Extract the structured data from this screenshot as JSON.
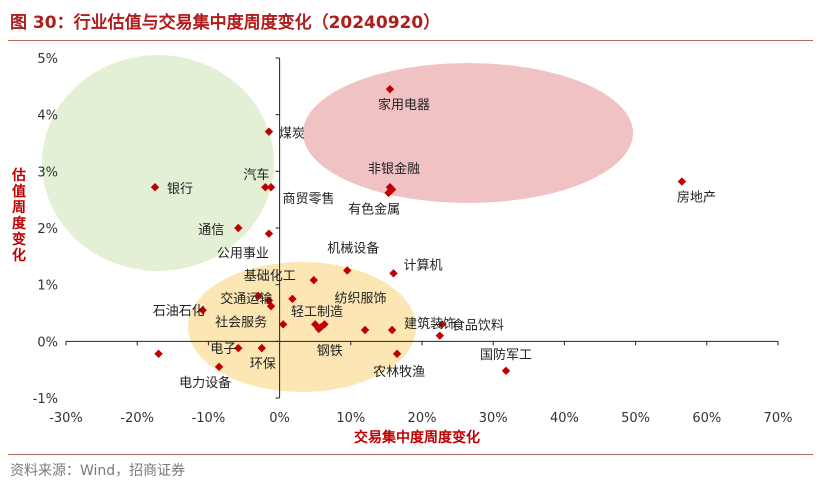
{
  "figure": {
    "title": "图 30：行业估值与交易集中度周度变化（20240920）",
    "source": "资料来源：Wind，招商证券"
  },
  "colors": {
    "title": "#b01c1c",
    "marker": "#c00000",
    "ellipse_green": "#e3f0d5",
    "ellipse_red": "#f0c2c4",
    "ellipse_yellow": "#fbe6b4",
    "axis": "#222222"
  },
  "chart_data": {
    "type": "scatter",
    "xlabel": "交易集中度周度变化",
    "ylabel": "估值周度变化",
    "xlim": [
      -30,
      70
    ],
    "ylim": [
      -1,
      5
    ],
    "x_ticks": [
      "-30%",
      "-20%",
      "-10%",
      "0%",
      "10%",
      "20%",
      "30%",
      "40%",
      "50%",
      "60%",
      "70%"
    ],
    "y_ticks": [
      "-1%",
      "0%",
      "1%",
      "2%",
      "3%",
      "4%",
      "5%"
    ],
    "grid": false,
    "legend": "none",
    "points": [
      {
        "label": "家用电器",
        "x": 15.5,
        "y": 4.45
      },
      {
        "label": "煤炭",
        "x": -1.5,
        "y": 3.7
      },
      {
        "label": "房地产",
        "x": 56.5,
        "y": 2.82
      },
      {
        "label": "银行",
        "x": -17.5,
        "y": 2.72
      },
      {
        "label": "汽车",
        "x": -2.0,
        "y": 2.72
      },
      {
        "label": "",
        "x": -1.2,
        "y": 2.72
      },
      {
        "label": "非银金融",
        "x": 15.5,
        "y": 2.72
      },
      {
        "label": "商贸零售",
        "x": 15.3,
        "y": 2.62
      },
      {
        "label": "有色金属",
        "x": 15.8,
        "y": 2.68
      },
      {
        "label": "通信",
        "x": -5.8,
        "y": 2.0
      },
      {
        "label": "公用事业",
        "x": -1.5,
        "y": 1.9
      },
      {
        "label": "机械设备",
        "x": 9.5,
        "y": 1.25
      },
      {
        "label": "计算机",
        "x": 16.0,
        "y": 1.2
      },
      {
        "label": "基础化工",
        "x": 4.8,
        "y": 1.08
      },
      {
        "label": "石油石化",
        "x": -10.8,
        "y": 0.55
      },
      {
        "label": "交通运输",
        "x": -3.0,
        "y": 0.8
      },
      {
        "label": "",
        "x": -1.5,
        "y": 0.72
      },
      {
        "label": "",
        "x": 1.8,
        "y": 0.75
      },
      {
        "label": "轻工制造",
        "x": -1.2,
        "y": 0.62
      },
      {
        "label": "社会服务",
        "x": 0.5,
        "y": 0.3
      },
      {
        "label": "",
        "x": 5.0,
        "y": 0.3
      },
      {
        "label": "",
        "x": 5.8,
        "y": 0.25
      },
      {
        "label": "纺织服饰",
        "x": 6.3,
        "y": 0.3
      },
      {
        "label": "",
        "x": 12.0,
        "y": 0.2
      },
      {
        "label": "建筑装饰",
        "x": 15.8,
        "y": 0.2
      },
      {
        "label": "食品饮料",
        "x": 22.8,
        "y": 0.3
      },
      {
        "label": "",
        "x": 22.5,
        "y": 0.1
      },
      {
        "label": "电子",
        "x": -5.8,
        "y": -0.12
      },
      {
        "label": "环保",
        "x": -2.5,
        "y": -0.12
      },
      {
        "label": "钢铁",
        "x": 5.5,
        "y": 0.22
      },
      {
        "label": "农林牧渔",
        "x": 16.5,
        "y": -0.22
      },
      {
        "label": "",
        "x": -17.0,
        "y": -0.22
      },
      {
        "label": "电力设备",
        "x": -8.5,
        "y": -0.45
      },
      {
        "label": "国防军工",
        "x": 31.8,
        "y": -0.52
      }
    ]
  }
}
